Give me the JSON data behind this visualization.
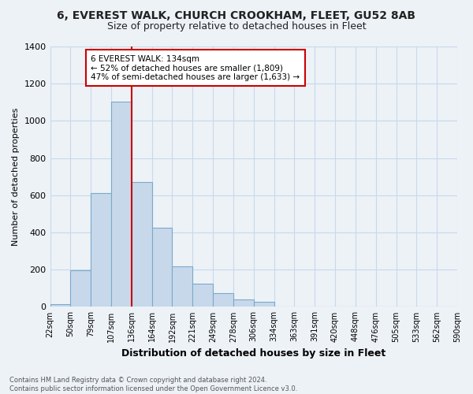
{
  "title1": "6, EVEREST WALK, CHURCH CROOKHAM, FLEET, GU52 8AB",
  "title2": "Size of property relative to detached houses in Fleet",
  "xlabel": "Distribution of detached houses by size in Fleet",
  "ylabel": "Number of detached properties",
  "footer1": "Contains HM Land Registry data © Crown copyright and database right 2024.",
  "footer2": "Contains public sector information licensed under the Open Government Licence v3.0.",
  "bin_labels": [
    "22sqm",
    "50sqm",
    "79sqm",
    "107sqm",
    "136sqm",
    "164sqm",
    "192sqm",
    "221sqm",
    "249sqm",
    "278sqm",
    "306sqm",
    "334sqm",
    "363sqm",
    "391sqm",
    "420sqm",
    "448sqm",
    "476sqm",
    "505sqm",
    "533sqm",
    "562sqm",
    "590sqm"
  ],
  "bar_values": [
    15,
    195,
    610,
    1105,
    670,
    425,
    220,
    125,
    75,
    40,
    27,
    0,
    0,
    0,
    0,
    0,
    0,
    0,
    0,
    0
  ],
  "bar_color": "#c8d8eb",
  "bar_edge_color": "#7aaac8",
  "vline_color": "#cc0000",
  "annotation_text": "6 EVEREST WALK: 134sqm\n← 52% of detached houses are smaller (1,809)\n47% of semi-detached houses are larger (1,633) →",
  "annotation_box_color": "#ffffff",
  "annotation_box_edge": "#cc0000",
  "ylim": [
    0,
    1400
  ],
  "yticks": [
    0,
    200,
    400,
    600,
    800,
    1000,
    1200,
    1400
  ],
  "grid_color": "#c8d8eb",
  "background_color": "#edf2f7",
  "title1_fontsize": 10,
  "title2_fontsize": 9
}
